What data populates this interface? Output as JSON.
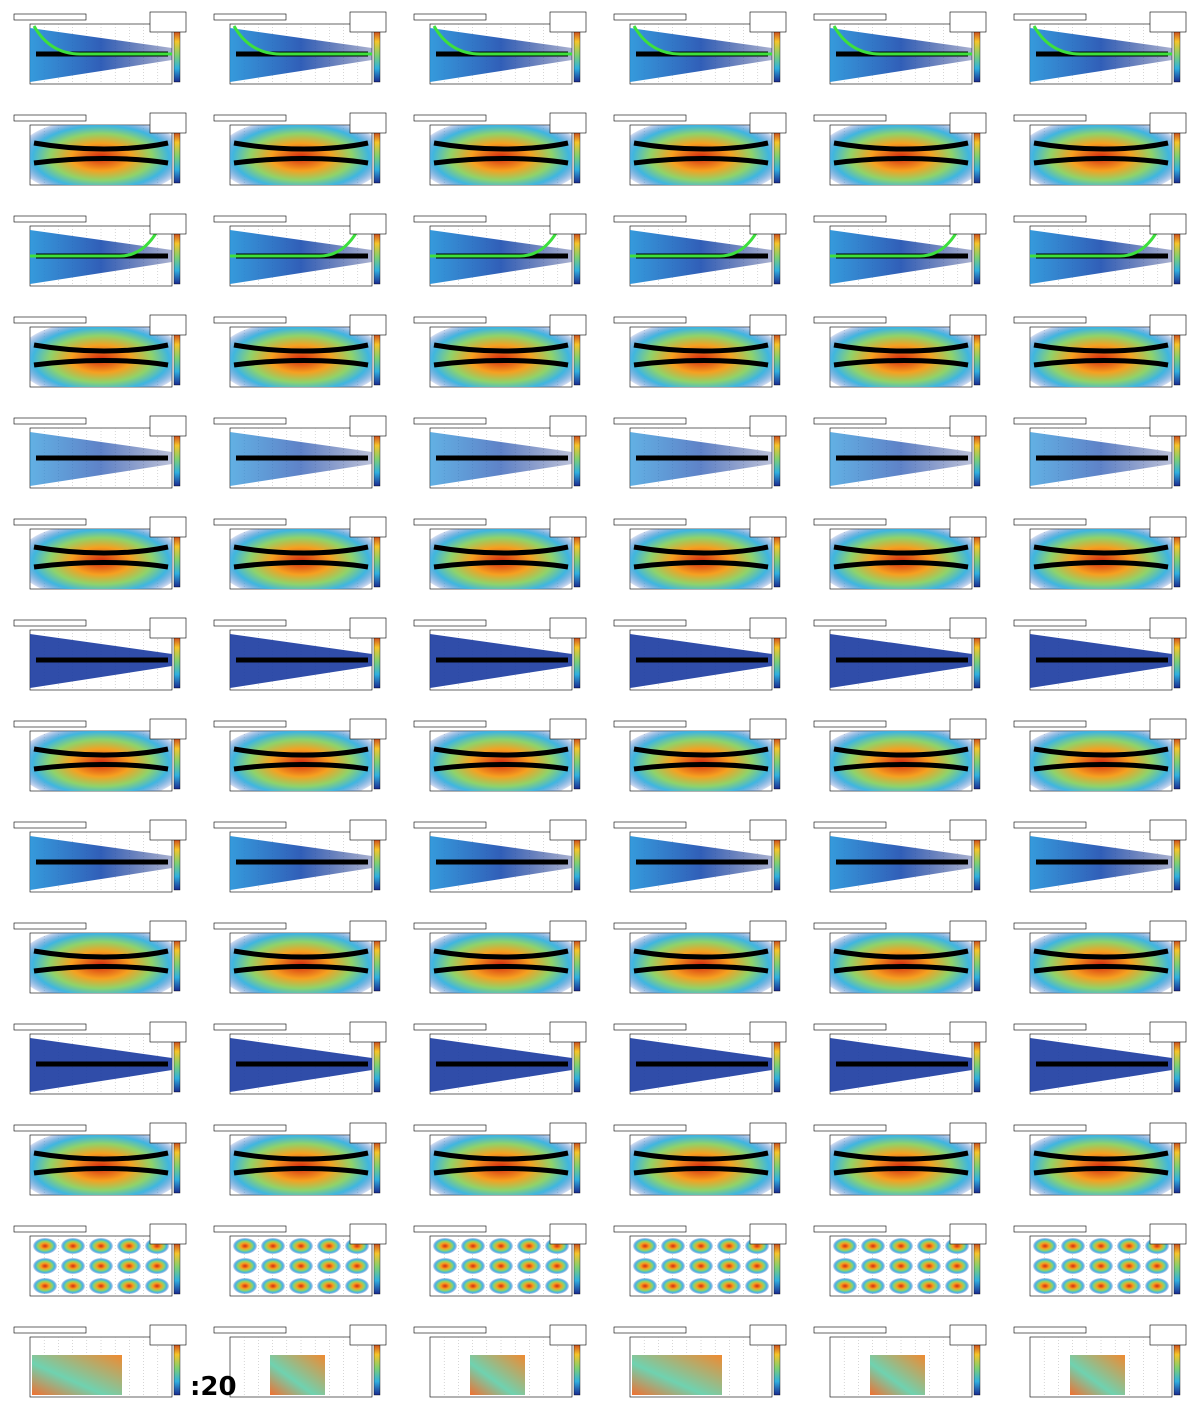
{
  "columns": 6,
  "rows": [
    {
      "style": "blue-decay"
    },
    {
      "style": "red-center"
    },
    {
      "style": "blue-rise"
    },
    {
      "style": "red-center"
    },
    {
      "style": "cyan-flat"
    },
    {
      "style": "red-center"
    },
    {
      "style": "dark-flat"
    },
    {
      "style": "red-center"
    },
    {
      "style": "blue-flat"
    },
    {
      "style": "orange-center"
    },
    {
      "style": "dark-flat"
    },
    {
      "style": "red-center"
    },
    {
      "style": "lattice"
    },
    {
      "style": "diagonal"
    }
  ],
  "fragment": ":20"
}
